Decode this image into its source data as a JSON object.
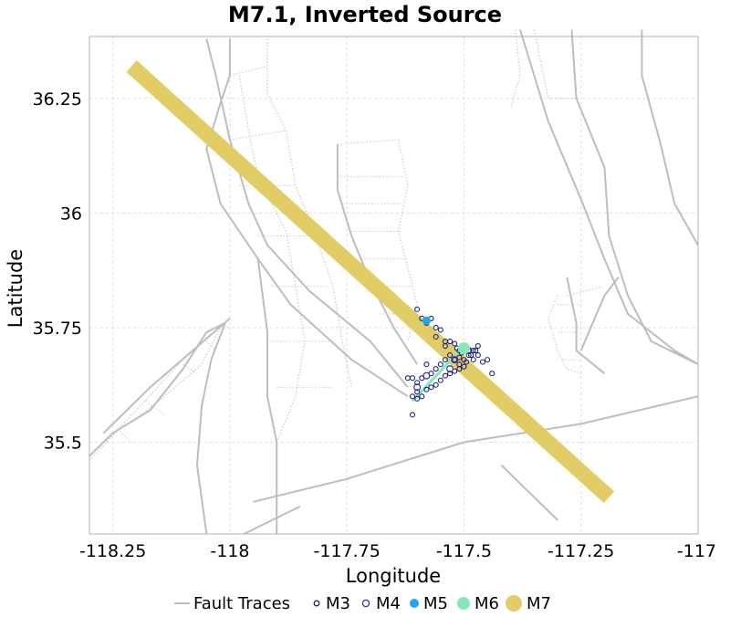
{
  "chart_data": {
    "type": "scatter",
    "title": "M7.1, Inverted Source",
    "xlabel": "Longitude",
    "ylabel": "Latitude",
    "xlim": [
      -118.3,
      -117.0
    ],
    "ylim": [
      35.3,
      36.385
    ],
    "x_ticks": [
      -118.25,
      -118.0,
      -117.75,
      -117.5,
      -117.25,
      -117.0
    ],
    "x_tick_labels": [
      "-118.25",
      "-118",
      "-117.75",
      "-117.5",
      "-117.25",
      "-117"
    ],
    "y_ticks": [
      35.5,
      35.75,
      36.0,
      36.25
    ],
    "y_tick_labels": [
      "35.5",
      "35.75",
      "36",
      "36.25"
    ],
    "grid": true,
    "legend_position": "bottom",
    "legend": [
      "Fault Traces",
      "M3",
      "M4",
      "M5",
      "M6",
      "M7"
    ],
    "colors": {
      "fault": "#bdbdbd",
      "fault_minor": "#c8c8c8",
      "m3": "#1a237e",
      "m4": "#3f2aa8",
      "m5": "#1ea7f0",
      "m6": "#86e8b4",
      "m7": "#e2cc66",
      "grid": "#dddddd",
      "axis": "#b0b0b0"
    },
    "fault_traces": [
      [
        [
          -118.27,
          35.52
        ],
        [
          -118.17,
          35.62
        ],
        [
          -118.0,
          35.77
        ]
      ],
      [
        [
          -118.3,
          35.47
        ],
        [
          -118.25,
          35.52
        ],
        [
          -118.17,
          35.57
        ],
        [
          -118.1,
          35.66
        ],
        [
          -118.05,
          35.74
        ],
        [
          -118.01,
          35.76
        ]
      ],
      [
        [
          -117.95,
          35.37
        ],
        [
          -117.75,
          35.42
        ],
        [
          -117.5,
          35.5
        ],
        [
          -117.25,
          35.54
        ],
        [
          -117.0,
          35.6
        ]
      ],
      [
        [
          -117.97,
          35.3
        ],
        [
          -117.85,
          35.36
        ]
      ],
      [
        [
          -117.77,
          36.15
        ],
        [
          -117.77,
          36.05
        ],
        [
          -117.74,
          35.95
        ],
        [
          -117.7,
          35.85
        ],
        [
          -117.65,
          35.75
        ],
        [
          -117.6,
          35.67
        ]
      ],
      [
        [
          -117.94,
          35.9
        ],
        [
          -117.87,
          35.8
        ],
        [
          -117.74,
          35.68
        ],
        [
          -117.62,
          35.6
        ]
      ],
      [
        [
          -118.05,
          36.38
        ],
        [
          -118.03,
          36.3
        ],
        [
          -118.0,
          36.16
        ],
        [
          -117.96,
          36.02
        ],
        [
          -117.92,
          35.93
        ],
        [
          -117.83,
          35.83
        ],
        [
          -117.7,
          35.72
        ],
        [
          -117.62,
          35.62
        ]
      ],
      [
        [
          -118.0,
          36.38
        ],
        [
          -118.0,
          36.3
        ],
        [
          -118.02,
          36.24
        ],
        [
          -118.05,
          36.14
        ],
        [
          -118.02,
          36.02
        ],
        [
          -117.94,
          35.9
        ],
        [
          -117.92,
          35.74
        ],
        [
          -117.92,
          35.6
        ],
        [
          -117.9,
          35.5
        ],
        [
          -117.9,
          35.3
        ]
      ],
      [
        [
          -118.05,
          35.3
        ],
        [
          -118.07,
          35.45
        ],
        [
          -118.06,
          35.58
        ],
        [
          -118.04,
          35.68
        ],
        [
          -118.01,
          35.76
        ]
      ],
      [
        [
          -117.38,
          36.4
        ],
        [
          -117.32,
          36.2
        ],
        [
          -117.25,
          36.03
        ],
        [
          -117.2,
          35.9
        ],
        [
          -117.15,
          35.78
        ],
        [
          -117.05,
          35.7
        ],
        [
          -117.0,
          35.67
        ]
      ],
      [
        [
          -117.27,
          36.4
        ],
        [
          -117.26,
          36.25
        ],
        [
          -117.2,
          36.1
        ],
        [
          -117.19,
          35.95
        ],
        [
          -117.15,
          35.82
        ],
        [
          -117.1,
          35.72
        ],
        [
          -117.0,
          35.67
        ]
      ],
      [
        [
          -117.12,
          36.4
        ],
        [
          -117.12,
          36.3
        ],
        [
          -117.08,
          36.15
        ],
        [
          -117.05,
          36.02
        ],
        [
          -117.0,
          35.93
        ]
      ],
      [
        [
          -117.42,
          35.45
        ],
        [
          -117.35,
          35.38
        ],
        [
          -117.3,
          35.33
        ]
      ],
      [
        [
          -117.28,
          35.86
        ],
        [
          -117.26,
          35.76
        ],
        [
          -117.26,
          35.7
        ],
        [
          -117.2,
          35.65
        ]
      ],
      [
        [
          -117.25,
          35.7
        ],
        [
          -117.2,
          35.82
        ],
        [
          -117.17,
          35.86
        ]
      ]
    ],
    "minor_faults": [
      [
        [
          -118.3,
          35.46
        ],
        [
          -118.2,
          35.57
        ],
        [
          -118.1,
          35.68
        ],
        [
          -118.0,
          35.77
        ]
      ],
      [
        [
          -118.2,
          35.55
        ],
        [
          -118.14,
          35.6
        ],
        [
          -118.06,
          35.67
        ],
        [
          -118.02,
          35.75
        ]
      ],
      [
        [
          -117.92,
          36.38
        ],
        [
          -117.92,
          36.26
        ],
        [
          -117.88,
          36.18
        ],
        [
          -117.86,
          36.06
        ],
        [
          -117.82,
          35.96
        ],
        [
          -117.78,
          35.84
        ],
        [
          -117.76,
          35.72
        ],
        [
          -117.74,
          35.62
        ]
      ],
      [
        [
          -117.98,
          36.3
        ],
        [
          -117.96,
          36.18
        ],
        [
          -117.94,
          36.08
        ],
        [
          -117.88,
          35.96
        ],
        [
          -117.86,
          35.84
        ],
        [
          -117.84,
          35.72
        ],
        [
          -117.86,
          35.6
        ],
        [
          -117.9,
          35.5
        ]
      ],
      [
        [
          -117.64,
          36.16
        ],
        [
          -117.62,
          36.06
        ],
        [
          -117.64,
          35.96
        ],
        [
          -117.62,
          35.88
        ],
        [
          -117.6,
          35.8
        ],
        [
          -117.62,
          35.72
        ]
      ],
      [
        [
          -117.39,
          36.4
        ],
        [
          -117.38,
          36.3
        ],
        [
          -117.4,
          36.23
        ]
      ],
      [
        [
          -117.35,
          36.4
        ],
        [
          -117.32,
          36.25
        ],
        [
          -117.26,
          36.25
        ]
      ],
      [
        [
          -117.3,
          35.82
        ],
        [
          -117.32,
          35.77
        ],
        [
          -117.3,
          35.7
        ],
        [
          -117.28,
          35.66
        ],
        [
          -117.25,
          35.65
        ]
      ],
      [
        [
          -117.28,
          35.82
        ],
        [
          -117.2,
          35.84
        ]
      ]
    ],
    "fault_rungs": [
      [
        [
          -117.77,
          36.15
        ],
        [
          -117.64,
          36.16
        ]
      ],
      [
        [
          -117.77,
          36.08
        ],
        [
          -117.63,
          36.08
        ]
      ],
      [
        [
          -117.76,
          36.02
        ],
        [
          -117.63,
          36.02
        ]
      ],
      [
        [
          -117.74,
          35.96
        ],
        [
          -117.63,
          35.96
        ]
      ],
      [
        [
          -117.72,
          35.9
        ],
        [
          -117.62,
          35.9
        ]
      ],
      [
        [
          -117.7,
          35.84
        ],
        [
          -117.61,
          35.84
        ]
      ],
      [
        [
          -117.68,
          35.78
        ],
        [
          -117.61,
          35.78
        ]
      ],
      [
        [
          -118.0,
          36.3
        ],
        [
          -117.92,
          36.32
        ]
      ],
      [
        [
          -118.0,
          36.16
        ],
        [
          -117.88,
          36.18
        ]
      ],
      [
        [
          -117.98,
          36.06
        ],
        [
          -117.86,
          36.06
        ]
      ],
      [
        [
          -117.94,
          35.95
        ],
        [
          -117.83,
          35.95
        ]
      ],
      [
        [
          -117.91,
          35.84
        ],
        [
          -117.79,
          35.84
        ]
      ],
      [
        [
          -117.92,
          35.72
        ],
        [
          -117.78,
          35.72
        ]
      ],
      [
        [
          -117.9,
          35.62
        ],
        [
          -117.78,
          35.62
        ]
      ],
      [
        [
          -117.3,
          35.8
        ],
        [
          -117.25,
          35.8
        ]
      ],
      [
        [
          -117.3,
          35.74
        ],
        [
          -117.26,
          35.74
        ]
      ],
      [
        [
          -117.29,
          35.68
        ],
        [
          -117.25,
          35.68
        ]
      ],
      [
        [
          -118.24,
          35.53
        ],
        [
          -118.21,
          35.5
        ]
      ],
      [
        [
          -118.18,
          35.59
        ],
        [
          -118.14,
          35.56
        ]
      ],
      [
        [
          -118.1,
          35.67
        ],
        [
          -118.07,
          35.65
        ]
      ],
      [
        [
          -118.05,
          35.72
        ],
        [
          -118.03,
          35.7
        ]
      ]
    ],
    "M7_rupture": [
      [
        -118.21,
        36.32
      ],
      [
        -117.19,
        35.38
      ]
    ],
    "M6_rupture": [
      [
        -117.61,
        35.59
      ],
      [
        -117.5,
        35.71
      ]
    ],
    "M5_events": [
      [
        -117.58,
        35.765
      ]
    ],
    "M6_events": [
      [
        -117.5,
        35.705
      ]
    ],
    "M4_events": [
      [
        -117.58,
        35.645
      ],
      [
        -117.52,
        35.68
      ],
      [
        -117.49,
        35.7
      ],
      [
        -117.6,
        35.62
      ],
      [
        -117.53,
        35.66
      ]
    ],
    "M3_events": [
      [
        -117.6,
        35.79
      ],
      [
        -117.59,
        35.77
      ],
      [
        -117.57,
        35.77
      ],
      [
        -117.58,
        35.76
      ],
      [
        -117.56,
        35.75
      ],
      [
        -117.55,
        35.745
      ],
      [
        -117.56,
        35.73
      ],
      [
        -117.54,
        35.72
      ],
      [
        -117.53,
        35.72
      ],
      [
        -117.54,
        35.71
      ],
      [
        -117.52,
        35.715
      ],
      [
        -117.51,
        35.7
      ],
      [
        -117.5,
        35.71
      ],
      [
        -117.49,
        35.7
      ],
      [
        -117.48,
        35.7
      ],
      [
        -117.47,
        35.71
      ],
      [
        -117.47,
        35.69
      ],
      [
        -117.48,
        35.68
      ],
      [
        -117.46,
        35.675
      ],
      [
        -117.45,
        35.68
      ],
      [
        -117.44,
        35.65
      ],
      [
        -117.49,
        35.69
      ],
      [
        -117.5,
        35.68
      ],
      [
        -117.51,
        35.67
      ],
      [
        -117.52,
        35.68
      ],
      [
        -117.53,
        35.69
      ],
      [
        -117.54,
        35.68
      ],
      [
        -117.55,
        35.67
      ],
      [
        -117.56,
        35.66
      ],
      [
        -117.57,
        35.65
      ],
      [
        -117.58,
        35.67
      ],
      [
        -117.59,
        35.64
      ],
      [
        -117.6,
        35.63
      ],
      [
        -117.61,
        35.64
      ],
      [
        -117.62,
        35.64
      ],
      [
        -117.6,
        35.61
      ],
      [
        -117.61,
        35.6
      ],
      [
        -117.6,
        35.595
      ],
      [
        -117.59,
        35.6
      ],
      [
        -117.58,
        35.615
      ],
      [
        -117.57,
        35.62
      ],
      [
        -117.56,
        35.625
      ],
      [
        -117.55,
        35.635
      ],
      [
        -117.54,
        35.645
      ],
      [
        -117.53,
        35.65
      ],
      [
        -117.52,
        35.655
      ],
      [
        -117.51,
        35.66
      ],
      [
        -117.5,
        35.665
      ],
      [
        -117.485,
        35.69
      ],
      [
        -117.475,
        35.7
      ],
      [
        -117.61,
        35.56
      ],
      [
        -117.51,
        35.685
      ],
      [
        -117.495,
        35.675
      ],
      [
        -117.505,
        35.695
      ],
      [
        -117.515,
        35.705
      ]
    ]
  }
}
